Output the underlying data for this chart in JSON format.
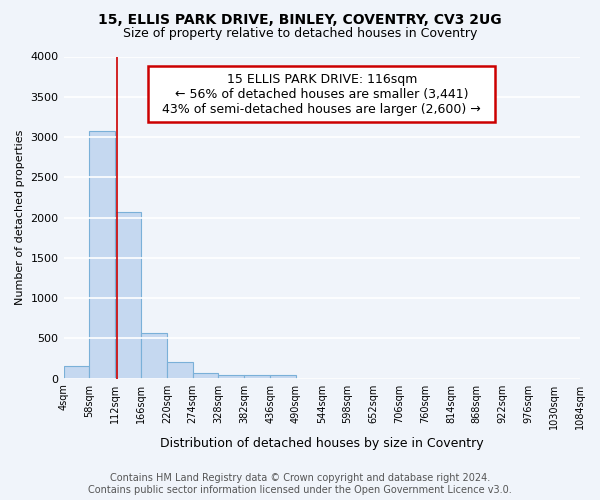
{
  "title1": "15, ELLIS PARK DRIVE, BINLEY, COVENTRY, CV3 2UG",
  "title2": "Size of property relative to detached houses in Coventry",
  "xlabel": "Distribution of detached houses by size in Coventry",
  "ylabel": "Number of detached properties",
  "bin_edges": [
    4,
    58,
    112,
    166,
    220,
    274,
    328,
    382,
    436,
    490,
    544,
    598,
    652,
    706,
    760,
    814,
    868,
    922,
    976,
    1030,
    1084
  ],
  "bar_heights": [
    155,
    3070,
    2070,
    570,
    205,
    75,
    50,
    45,
    45,
    0,
    0,
    0,
    0,
    0,
    0,
    0,
    0,
    0,
    0,
    0
  ],
  "bar_color": "#c5d8f0",
  "bar_edge_color": "#7ab0d8",
  "red_line_x": 116,
  "ylim": [
    0,
    4000
  ],
  "yticks": [
    0,
    500,
    1000,
    1500,
    2000,
    2500,
    3000,
    3500,
    4000
  ],
  "annotation_title": "15 ELLIS PARK DRIVE: 116sqm",
  "annotation_line1": "← 56% of detached houses are smaller (3,441)",
  "annotation_line2": "43% of semi-detached houses are larger (2,600) →",
  "annotation_box_color": "#ffffff",
  "annotation_box_edge_color": "#cc0000",
  "footnote1": "Contains HM Land Registry data © Crown copyright and database right 2024.",
  "footnote2": "Contains public sector information licensed under the Open Government Licence v3.0.",
  "bg_color": "#f0f4fa",
  "plot_bg_color": "#f0f4fa",
  "grid_color": "#ffffff",
  "title1_fontsize": 10,
  "title2_fontsize": 9,
  "xlabel_fontsize": 9,
  "ylabel_fontsize": 8,
  "tick_fontsize": 8,
  "annotation_fontsize": 9,
  "footnote_fontsize": 7
}
